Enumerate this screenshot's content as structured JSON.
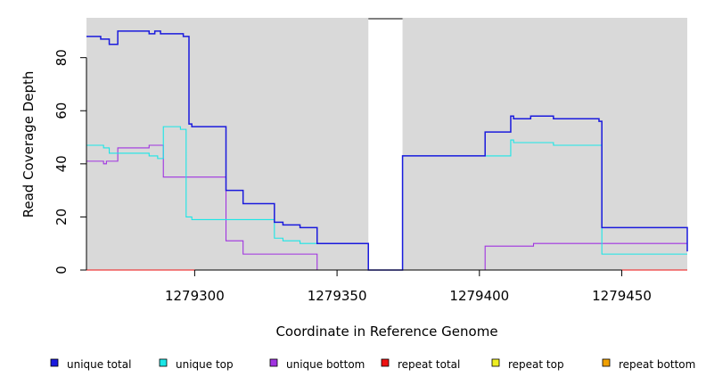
{
  "chart_data": {
    "type": "line",
    "xlabel": "Coordinate in Reference Genome",
    "ylabel": "Read Coverage Depth",
    "xlim": [
      1279262,
      1279473
    ],
    "ylim": [
      0,
      95
    ],
    "xticks": [
      1279300,
      1279350,
      1279400,
      1279450
    ],
    "xtick_labels": [
      "1279300",
      "1279350",
      "1279400",
      "1279450"
    ],
    "yticks": [
      0,
      20,
      40,
      60,
      80
    ],
    "ytick_labels": [
      "0",
      "20",
      "40",
      "60",
      "80"
    ],
    "background_color": "#d9d9d9",
    "gap": [
      1279361,
      1279373
    ],
    "legend_placement": "bottom",
    "series": [
      {
        "name": "unique total",
        "color": "#1a1add",
        "x": [
          1279262,
          1279267,
          1279270,
          1279273,
          1279284,
          1279286,
          1279288,
          1279296,
          1279298,
          1279299,
          1279311,
          1279317,
          1279328,
          1279331,
          1279337,
          1279343,
          1279361,
          1279373,
          1279402,
          1279411,
          1279412,
          1279418,
          1279426,
          1279442,
          1279443,
          1279472,
          1279473
        ],
        "y": [
          88,
          87,
          85,
          90,
          89,
          90,
          89,
          88,
          55,
          54,
          30,
          25,
          18,
          17,
          16,
          10,
          0,
          43,
          52,
          58,
          57,
          58,
          57,
          56,
          16,
          16,
          7
        ]
      },
      {
        "name": "unique top",
        "color": "#1ae6e6",
        "x": [
          1279262,
          1279268,
          1279270,
          1279277,
          1279284,
          1279287,
          1279289,
          1279295,
          1279297,
          1279299,
          1279328,
          1279331,
          1279337,
          1279343,
          1279361,
          1279373,
          1279402,
          1279411,
          1279412,
          1279426,
          1279443,
          1279473
        ],
        "y": [
          47,
          46,
          44,
          44,
          43,
          42,
          54,
          53,
          20,
          19,
          12,
          11,
          10,
          10,
          0,
          43,
          43,
          49,
          48,
          47,
          6,
          6
        ]
      },
      {
        "name": "unique bottom",
        "color": "#a033e0",
        "x": [
          1279262,
          1279268,
          1279269,
          1279273,
          1279278,
          1279284,
          1279289,
          1279311,
          1279317,
          1279343,
          1279402,
          1279419,
          1279473
        ],
        "y": [
          41,
          40,
          41,
          46,
          46,
          47,
          35,
          11,
          6,
          0,
          9,
          10,
          10
        ]
      },
      {
        "name": "repeat total",
        "color": "#ee1111",
        "x": [
          1279262,
          1279473
        ],
        "y": [
          0,
          0
        ]
      },
      {
        "name": "repeat top",
        "color": "#eeee22",
        "x": [
          1279262,
          1279473
        ],
        "y": [
          0,
          0
        ]
      },
      {
        "name": "repeat bottom",
        "color": "#f0a000",
        "x": [
          1279262,
          1279473
        ],
        "y": [
          0,
          0
        ]
      }
    ]
  }
}
